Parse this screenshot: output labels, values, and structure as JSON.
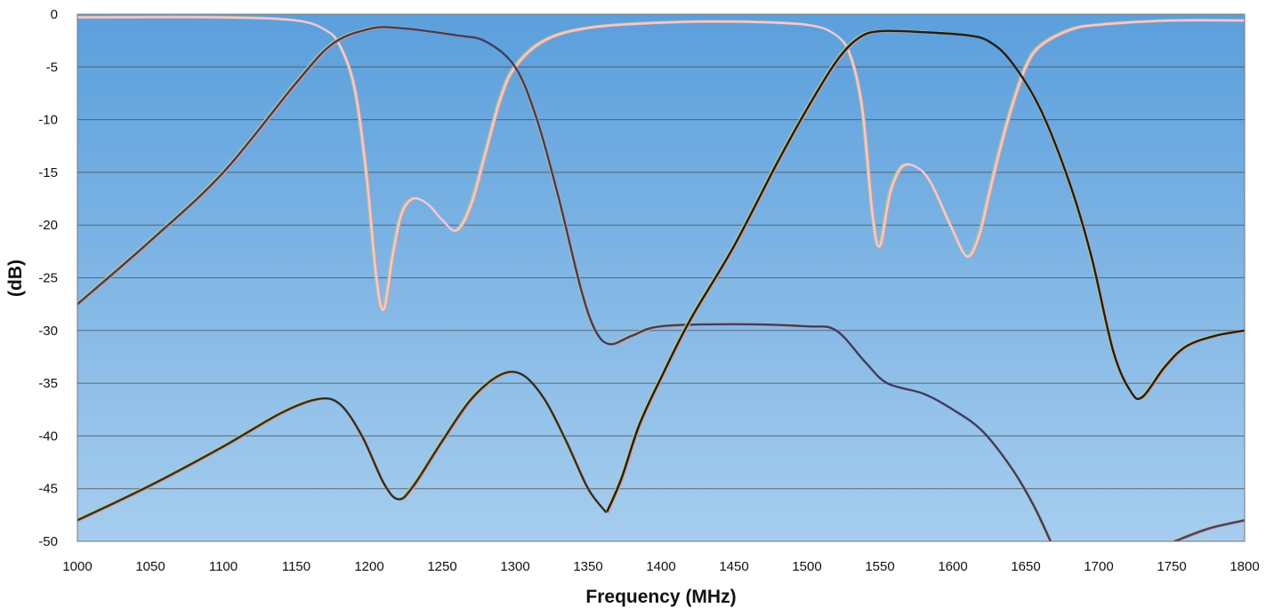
{
  "chart_data": {
    "type": "line",
    "title": "",
    "xlabel": "Frequency (MHz)",
    "ylabel": "(dB)",
    "xlim": [
      1000,
      1800
    ],
    "ylim": [
      -50,
      0
    ],
    "x_ticks": [
      "1000",
      "1050",
      "1100",
      "1150",
      "1200",
      "1250",
      "1300",
      "1350",
      "1400",
      "1450",
      "1500",
      "1550",
      "1600",
      "1650",
      "1700",
      "1750",
      "1800"
    ],
    "y_ticks": [
      "0",
      "-5",
      "-10",
      "-15",
      "-20",
      "-25",
      "-30",
      "-35",
      "-40",
      "-45",
      "-50"
    ],
    "grid": true,
    "legend": "none",
    "colors": {
      "plot_bg_top": "#5b9fdc",
      "plot_bg_bottom": "#a6cdee",
      "passband_low_return_loss": "#f2c8dc",
      "passband_high_return_loss": "#f2c8dc",
      "low_band_transmission": "#3d3d66",
      "high_band_transmission": "#1e1e1e",
      "isolation_upper": "#40407a",
      "isolation_lower": "#2e2e2e"
    },
    "series": [
      {
        "id": "return_loss_low_band",
        "color": "#f2c8dc",
        "points": [
          [
            1000,
            -0.3
          ],
          [
            1100,
            -0.3
          ],
          [
            1150,
            -0.6
          ],
          [
            1170,
            -1.5
          ],
          [
            1180,
            -3
          ],
          [
            1190,
            -7
          ],
          [
            1198,
            -15
          ],
          [
            1205,
            -25
          ],
          [
            1210,
            -28
          ],
          [
            1216,
            -23
          ],
          [
            1222,
            -19
          ],
          [
            1230,
            -17.5
          ],
          [
            1240,
            -18
          ],
          [
            1250,
            -19.5
          ],
          [
            1260,
            -20.5
          ],
          [
            1270,
            -18
          ],
          [
            1280,
            -13
          ],
          [
            1290,
            -8
          ],
          [
            1300,
            -5
          ],
          [
            1320,
            -2.5
          ],
          [
            1350,
            -1.3
          ],
          [
            1400,
            -0.8
          ],
          [
            1450,
            -0.7
          ],
          [
            1500,
            -1.0
          ],
          [
            1520,
            -2
          ],
          [
            1530,
            -4
          ],
          [
            1538,
            -9
          ],
          [
            1545,
            -19
          ],
          [
            1550,
            -22
          ],
          [
            1557,
            -17
          ],
          [
            1565,
            -14.5
          ],
          [
            1575,
            -14.5
          ],
          [
            1585,
            -16
          ],
          [
            1600,
            -20.5
          ],
          [
            1610,
            -23
          ],
          [
            1618,
            -21
          ],
          [
            1625,
            -17
          ],
          [
            1632,
            -13
          ],
          [
            1640,
            -9
          ],
          [
            1650,
            -5
          ],
          [
            1660,
            -3
          ],
          [
            1680,
            -1.5
          ],
          [
            1700,
            -1.0
          ],
          [
            1750,
            -0.6
          ],
          [
            1800,
            -0.6
          ]
        ]
      },
      {
        "id": "transmission_low_band",
        "color": "#3d3d66",
        "points": [
          [
            1000,
            -27.5
          ],
          [
            1050,
            -21.5
          ],
          [
            1100,
            -15
          ],
          [
            1150,
            -6.5
          ],
          [
            1175,
            -2.8
          ],
          [
            1200,
            -1.4
          ],
          [
            1220,
            -1.3
          ],
          [
            1260,
            -2
          ],
          [
            1280,
            -2.6
          ],
          [
            1300,
            -5
          ],
          [
            1315,
            -10
          ],
          [
            1330,
            -17.5
          ],
          [
            1345,
            -26
          ],
          [
            1355,
            -30
          ],
          [
            1365,
            -31.3
          ],
          [
            1380,
            -30.5
          ],
          [
            1400,
            -29.6
          ],
          [
            1450,
            -29.4
          ],
          [
            1500,
            -29.6
          ],
          [
            1520,
            -30
          ],
          [
            1540,
            -33
          ],
          [
            1555,
            -35
          ],
          [
            1580,
            -36
          ],
          [
            1600,
            -37.5
          ],
          [
            1620,
            -39.5
          ],
          [
            1640,
            -43
          ],
          [
            1655,
            -46.5
          ],
          [
            1667,
            -50
          ]
        ]
      },
      {
        "id": "transmission_high_band",
        "color": "#1e1e1e",
        "points": [
          [
            1363,
            -47.2
          ],
          [
            1373,
            -44
          ],
          [
            1385,
            -39
          ],
          [
            1400,
            -34.5
          ],
          [
            1420,
            -29
          ],
          [
            1450,
            -22
          ],
          [
            1480,
            -14
          ],
          [
            1500,
            -9
          ],
          [
            1520,
            -4.5
          ],
          [
            1535,
            -2.3
          ],
          [
            1550,
            -1.6
          ],
          [
            1580,
            -1.7
          ],
          [
            1610,
            -2.0
          ],
          [
            1625,
            -2.6
          ],
          [
            1640,
            -4.5
          ],
          [
            1660,
            -9
          ],
          [
            1680,
            -16
          ],
          [
            1695,
            -23
          ],
          [
            1710,
            -32
          ],
          [
            1722,
            -35.8
          ],
          [
            1730,
            -36.3
          ],
          [
            1745,
            -33.5
          ],
          [
            1760,
            -31.5
          ],
          [
            1780,
            -30.5
          ],
          [
            1800,
            -30.0
          ]
        ]
      },
      {
        "id": "isolation_lower",
        "color": "#2e2e2e",
        "points": [
          [
            1000,
            -48
          ],
          [
            1050,
            -44.7
          ],
          [
            1100,
            -41
          ],
          [
            1140,
            -37.8
          ],
          [
            1165,
            -36.5
          ],
          [
            1180,
            -37
          ],
          [
            1195,
            -40
          ],
          [
            1210,
            -44.5
          ],
          [
            1220,
            -46
          ],
          [
            1230,
            -44.8
          ],
          [
            1250,
            -40.5
          ],
          [
            1270,
            -36.5
          ],
          [
            1290,
            -34.2
          ],
          [
            1305,
            -34.2
          ],
          [
            1320,
            -36.5
          ],
          [
            1335,
            -40.5
          ],
          [
            1350,
            -45
          ],
          [
            1362,
            -47.2
          ]
        ]
      },
      {
        "id": "isolation_upper_tail",
        "color": "#40407a",
        "points": [
          [
            1752,
            -50
          ],
          [
            1775,
            -48.8
          ],
          [
            1800,
            -48.0
          ]
        ]
      }
    ]
  }
}
